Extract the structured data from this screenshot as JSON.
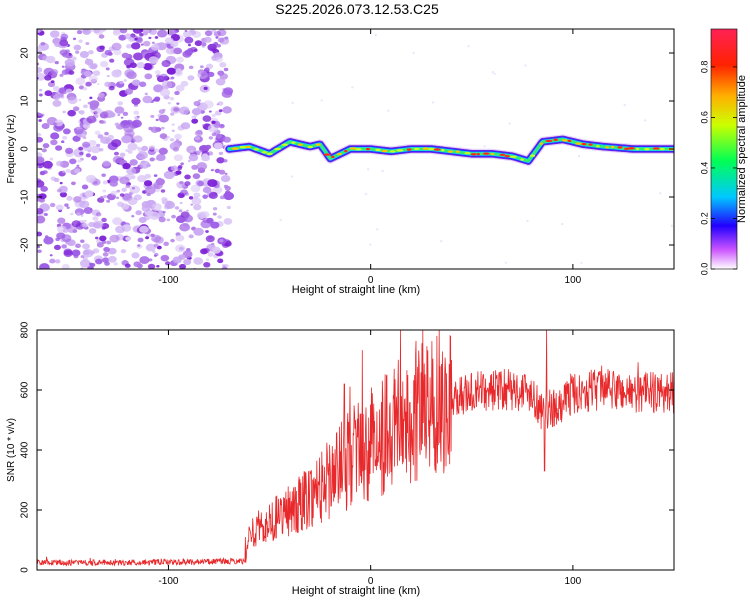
{
  "title": "S225.2026.073.12.53.C25",
  "colors": {
    "snr_line": "#e8282a",
    "speckle_dark": "#7b1fd6",
    "speckle_light": "#c9a8f2",
    "axis": "#000000"
  },
  "chart_data": [
    {
      "type": "heatmap",
      "name": "spectrogram",
      "xlabel": "Height of straight line (km)",
      "ylabel": "Frequency (Hz)",
      "xlim": [
        -165,
        150
      ],
      "ylim": [
        -25,
        25
      ],
      "x_ticks": [
        -100,
        0,
        100
      ],
      "x_tick_labels": [
        "-100",
        "0",
        "100"
      ],
      "y_ticks": [
        -20,
        -10,
        0,
        10,
        20
      ],
      "y_tick_labels": [
        "-20",
        "-10",
        "0",
        "10",
        "20"
      ],
      "noise_region_x": [
        -165,
        -70
      ],
      "signal_onset_x": -70,
      "track_center_hz": [
        [
          -70,
          0
        ],
        [
          -60,
          0.5
        ],
        [
          -50,
          -1
        ],
        [
          -40,
          1.5
        ],
        [
          -30,
          0.5
        ],
        [
          -25,
          1
        ],
        [
          -20,
          -2
        ],
        [
          -10,
          0
        ],
        [
          0,
          0
        ],
        [
          10,
          -0.5
        ],
        [
          20,
          0
        ],
        [
          30,
          0
        ],
        [
          40,
          -0.5
        ],
        [
          50,
          -1
        ],
        [
          60,
          -1
        ],
        [
          70,
          -1.5
        ],
        [
          78,
          -2.5
        ],
        [
          85,
          1.5
        ],
        [
          95,
          2
        ],
        [
          105,
          1
        ],
        [
          115,
          0.5
        ],
        [
          130,
          0
        ],
        [
          150,
          0
        ]
      ],
      "colorbar": {
        "label": "Normalized spectral amplitude",
        "range": [
          0,
          0.95
        ],
        "ticks": [
          0.0,
          0.2,
          0.4,
          0.6,
          0.8
        ],
        "tick_labels": [
          "0.0",
          "0.2",
          "0.4",
          "0.6",
          "0.8"
        ]
      }
    },
    {
      "type": "line",
      "name": "snr",
      "xlabel": "Height of straight line (km)",
      "ylabel": "SNR (10 * v/v)",
      "xlim": [
        -165,
        150
      ],
      "ylim": [
        0,
        800
      ],
      "x_ticks": [
        -100,
        0,
        100
      ],
      "x_tick_labels": [
        "-100",
        "0",
        "100"
      ],
      "y_ticks": [
        0,
        200,
        400,
        600,
        800
      ],
      "y_tick_labels": [
        "0",
        "200",
        "400",
        "600",
        "800"
      ],
      "trend": [
        [
          -165,
          25
        ],
        [
          -120,
          25
        ],
        [
          -80,
          28
        ],
        [
          -62,
          30
        ],
        [
          -60,
          120
        ],
        [
          -50,
          160
        ],
        [
          -40,
          200
        ],
        [
          -30,
          250
        ],
        [
          -20,
          310
        ],
        [
          -10,
          370
        ],
        [
          0,
          420
        ],
        [
          10,
          470
        ],
        [
          20,
          520
        ],
        [
          30,
          555
        ],
        [
          40,
          575
        ],
        [
          50,
          590
        ],
        [
          60,
          600
        ],
        [
          70,
          600
        ],
        [
          80,
          595
        ],
        [
          85,
          520
        ],
        [
          90,
          540
        ],
        [
          100,
          590
        ],
        [
          110,
          600
        ],
        [
          120,
          600
        ],
        [
          130,
          590
        ],
        [
          140,
          595
        ],
        [
          150,
          590
        ]
      ],
      "peaks": [
        [
          -13,
          620
        ],
        [
          87,
          800
        ],
        [
          -62,
          110
        ],
        [
          86,
          330
        ]
      ]
    }
  ]
}
